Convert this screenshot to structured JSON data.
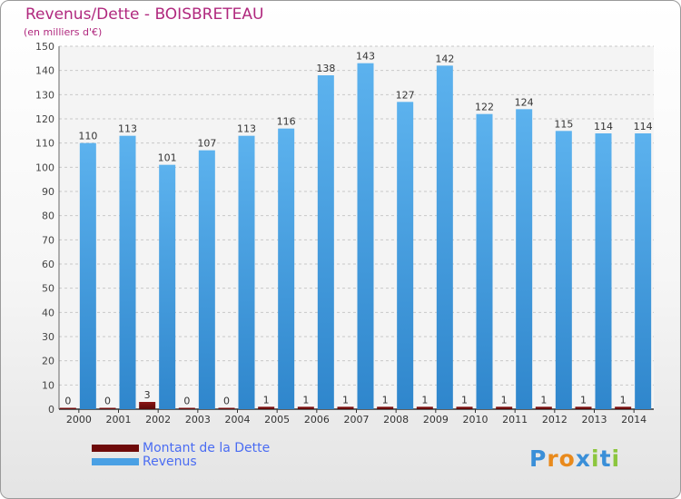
{
  "header": {
    "title": "Revenus/Dette - BOISBRETEAU",
    "subtitle": "(en milliers d'€)"
  },
  "chart_data": {
    "type": "bar",
    "categories": [
      "2000",
      "2001",
      "2002",
      "2003",
      "2004",
      "2005",
      "2006",
      "2007",
      "2008",
      "2009",
      "2010",
      "2011",
      "2012",
      "2013",
      "2014"
    ],
    "series": [
      {
        "name": "Montant de la Dette",
        "color": "#6e0a0a",
        "values": [
          0,
          0,
          3,
          0,
          0,
          1,
          1,
          1,
          1,
          1,
          1,
          1,
          1,
          1,
          1
        ],
        "labels": [
          "0",
          "0",
          "3",
          "0",
          "0",
          "1",
          "1",
          "1",
          "1",
          "1",
          "1",
          "1",
          "1",
          "1",
          "1"
        ]
      },
      {
        "name": "Revenus",
        "color": "#4aa0e4",
        "values": [
          110,
          113,
          101,
          107,
          113,
          116,
          138,
          143,
          127,
          142,
          122,
          124,
          115,
          114,
          114
        ],
        "labels": [
          "110",
          "113",
          "101",
          "107",
          "113",
          "116",
          "138",
          "143",
          "127",
          "142",
          "122",
          "124",
          "115",
          "114",
          "114"
        ]
      }
    ],
    "yticks": [
      0,
      10,
      20,
      30,
      40,
      50,
      60,
      70,
      80,
      90,
      100,
      110,
      120,
      130,
      140,
      150
    ],
    "ylim": [
      0,
      150
    ],
    "grid": true,
    "legend_position": "bottom-left"
  },
  "legend": {
    "items": [
      {
        "label": "Montant de la Dette",
        "color": "#6e0a0a"
      },
      {
        "label": "Revenus",
        "color": "#4aa0e4"
      }
    ]
  },
  "brand": {
    "letters": [
      "P",
      "r",
      "o",
      "x",
      "i",
      "t",
      "i"
    ],
    "colors": [
      "#3a8fd8",
      "#e98a1c",
      "#e98a1c",
      "#3a8fd8",
      "#8cc63e",
      "#3a8fd8",
      "#8cc63e"
    ]
  }
}
